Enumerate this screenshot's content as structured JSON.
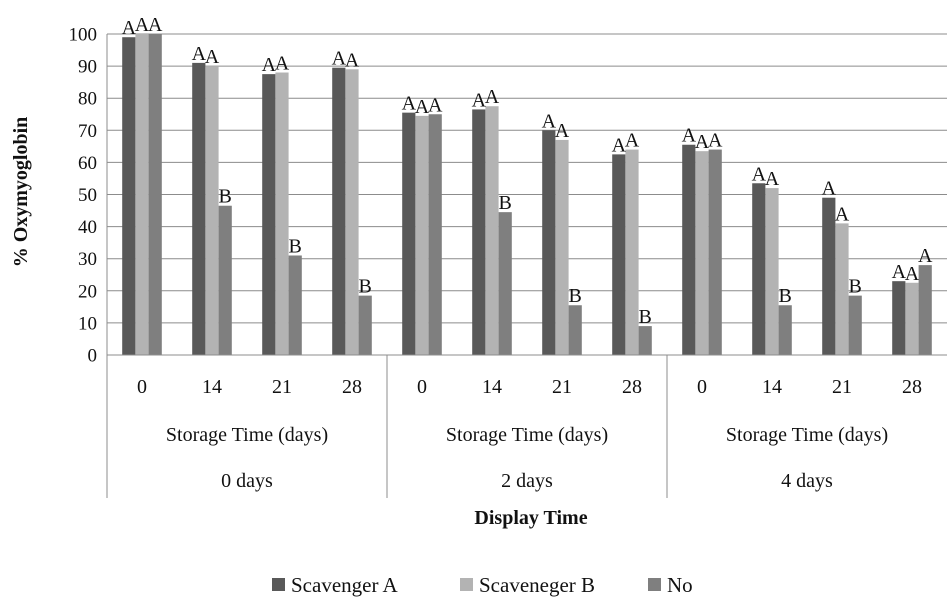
{
  "chart_data": {
    "type": "bar",
    "ylabel": "% Oxymyoglobin",
    "xlabel": "Display Time",
    "ylim": [
      0,
      100
    ],
    "yticks": [
      0,
      10,
      20,
      30,
      40,
      50,
      60,
      70,
      80,
      90,
      100
    ],
    "groups": [
      {
        "label": "0 days",
        "sublabel": "Storage Time (days)",
        "categories": [
          "0",
          "14",
          "21",
          "28"
        ]
      },
      {
        "label": "2 days",
        "sublabel": "Storage Time (days)",
        "categories": [
          "0",
          "14",
          "21",
          "28"
        ]
      },
      {
        "label": "4 days",
        "sublabel": "Storage Time (days)",
        "categories": [
          "0",
          "14",
          "21",
          "28"
        ]
      }
    ],
    "series": [
      {
        "name": "Scavenger A",
        "color": "#595959",
        "values": [
          99,
          91,
          87.5,
          89.5,
          75.5,
          76.5,
          70,
          62.5,
          65.5,
          53.5,
          49,
          23
        ],
        "letters": [
          "A",
          "A",
          "A",
          "A",
          "A",
          "A",
          "A",
          "A",
          "A",
          "A",
          "A",
          "A"
        ]
      },
      {
        "name": "Scaveneger B",
        "color": "#b3b3b3",
        "values": [
          100,
          90,
          88,
          89,
          74.5,
          77.5,
          67,
          64,
          63.5,
          52,
          41,
          22.5
        ],
        "letters": [
          "A",
          "A",
          "A",
          "A",
          "A",
          "A",
          "A",
          "A",
          "A",
          "A",
          "A",
          "A"
        ]
      },
      {
        "name": "No",
        "color": "#7f7f7f",
        "values": [
          100,
          46.5,
          31,
          18.5,
          75,
          44.5,
          15.5,
          9,
          64,
          15.5,
          18.5,
          28
        ],
        "letters": [
          "A",
          "B",
          "B",
          "B",
          "A",
          "B",
          "B",
          "B",
          "A",
          "B",
          "B",
          "A"
        ]
      }
    ],
    "legend_position": "bottom",
    "grid": true
  }
}
